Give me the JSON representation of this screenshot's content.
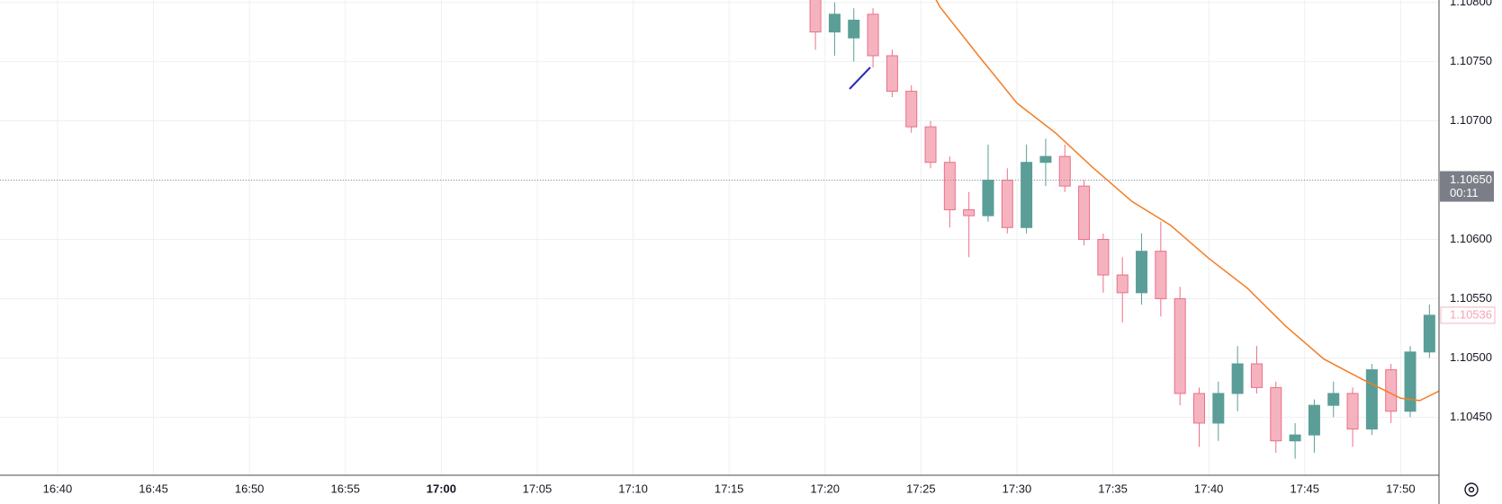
{
  "chart_data": {
    "type": "candlestick",
    "x": [
      "17:19",
      "17:20",
      "17:21",
      "17:22",
      "17:23",
      "17:24",
      "17:25",
      "17:26",
      "17:27",
      "17:28",
      "17:29",
      "17:30",
      "17:31",
      "17:32",
      "17:33",
      "17:34",
      "17:35",
      "17:36",
      "17:37",
      "17:38",
      "17:39",
      "17:40",
      "17:41",
      "17:42",
      "17:43",
      "17:44",
      "17:45",
      "17:46",
      "17:47",
      "17:48",
      "17:49",
      "17:50",
      "17:51"
    ],
    "open": [
      1.10805,
      1.10775,
      1.1077,
      1.1079,
      1.10755,
      1.10725,
      1.10695,
      1.10665,
      1.10625,
      1.1062,
      1.1065,
      1.1061,
      1.10665,
      1.1067,
      1.10645,
      1.106,
      1.1057,
      1.10555,
      1.1059,
      1.1055,
      1.1047,
      1.10445,
      1.1047,
      1.10495,
      1.10475,
      1.1043,
      1.10435,
      1.1046,
      1.1047,
      1.1044,
      1.1049,
      1.10455,
      1.10505
    ],
    "high": [
      1.10815,
      1.108,
      1.10795,
      1.10795,
      1.1076,
      1.1073,
      1.107,
      1.1067,
      1.1064,
      1.1068,
      1.1066,
      1.1068,
      1.10685,
      1.1068,
      1.1065,
      1.10605,
      1.10585,
      1.10605,
      1.10615,
      1.1056,
      1.10475,
      1.1048,
      1.1051,
      1.1051,
      1.1048,
      1.10445,
      1.10465,
      1.1048,
      1.10475,
      1.10495,
      1.10495,
      1.1051,
      1.10545
    ],
    "low": [
      1.1076,
      1.10755,
      1.1075,
      1.10745,
      1.1072,
      1.1069,
      1.1066,
      1.1061,
      1.10585,
      1.10615,
      1.10605,
      1.10605,
      1.10645,
      1.1064,
      1.10595,
      1.10555,
      1.1053,
      1.10545,
      1.10535,
      1.1046,
      1.10425,
      1.1043,
      1.10455,
      1.1047,
      1.1042,
      1.10415,
      1.1042,
      1.1045,
      1.10425,
      1.10435,
      1.10445,
      1.1045,
      1.105
    ],
    "close": [
      1.10775,
      1.1079,
      1.10785,
      1.10755,
      1.10725,
      1.10695,
      1.10665,
      1.10625,
      1.1062,
      1.1065,
      1.1061,
      1.10665,
      1.1067,
      1.10645,
      1.106,
      1.1057,
      1.10555,
      1.1059,
      1.1055,
      1.1047,
      1.10445,
      1.1047,
      1.10495,
      1.10475,
      1.1043,
      1.10435,
      1.1046,
      1.1047,
      1.1044,
      1.1049,
      1.10455,
      1.10505,
      1.10536
    ],
    "up_color": "#5a9e97",
    "down_color": "#f5b3c0",
    "down_border": "#ec6f86",
    "moving_average": {
      "color": "#f57c24",
      "x": [
        "17:25",
        "17:26",
        "17:28",
        "17:30",
        "17:32",
        "17:34",
        "17:36",
        "17:38",
        "17:40",
        "17:42",
        "17:44",
        "17:46",
        "17:48",
        "17:50",
        "17:51",
        "17:52"
      ],
      "values": [
        1.10825,
        1.10796,
        1.10755,
        1.10715,
        1.1069,
        1.1066,
        1.10632,
        1.10612,
        1.10584,
        1.10559,
        1.10527,
        1.10499,
        1.10482,
        1.10466,
        1.10464,
        1.10472
      ]
    },
    "xlim": [
      "16:37",
      "17:52"
    ],
    "xticks": [
      "16:40",
      "16:45",
      "16:50",
      "16:55",
      "17:00",
      "17:05",
      "17:10",
      "17:15",
      "17:20",
      "17:25",
      "17:30",
      "17:35",
      "17:40",
      "17:45",
      "17:50"
    ],
    "ylim": [
      1.10401,
      1.10802
    ],
    "yticks": [
      {
        "value": 1.1045,
        "label": "1.10450"
      },
      {
        "value": 1.105,
        "label": "1.10500"
      },
      {
        "value": 1.1055,
        "label": "1.10550"
      },
      {
        "value": 1.106,
        "label": "1.10600"
      },
      {
        "value": 1.1065,
        "label": "1.10650"
      },
      {
        "value": 1.107,
        "label": "1.10700"
      },
      {
        "value": 1.1075,
        "label": "1.10750"
      },
      {
        "value": 1.108,
        "label": "1.10800"
      }
    ],
    "grid": true,
    "price_line": {
      "value": 1.1065,
      "label": "1.10650",
      "countdown": "00:11"
    },
    "last_price": {
      "value": 1.10536,
      "label": "1.10536"
    }
  }
}
